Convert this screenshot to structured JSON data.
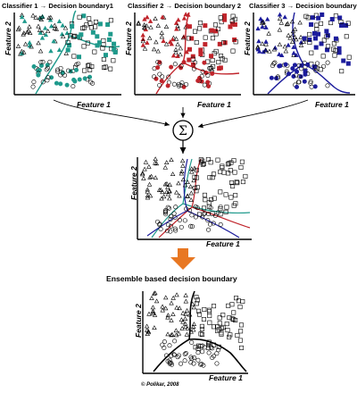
{
  "titles": {
    "classifier1": "Classifier 1 → Decision boundary1",
    "classifier2": "Classifier 2 → Decision boundary 2",
    "classifier3": "Classifier 3 → Decision boundary 3",
    "ensemble": "Ensemble based decision boundary"
  },
  "axes": {
    "feature1": "Feature 1",
    "feature2": "Feature 2"
  },
  "sum_symbol": "Σ",
  "copyright": "© Polikar, 2008",
  "colors": {
    "classifier1": "#1f9a8c",
    "classifier2": "#c0242b",
    "classifier3": "#1c1c9c",
    "ensemble_title": "#e0781c",
    "arrow": "#e87722",
    "black": "#000000"
  }
}
